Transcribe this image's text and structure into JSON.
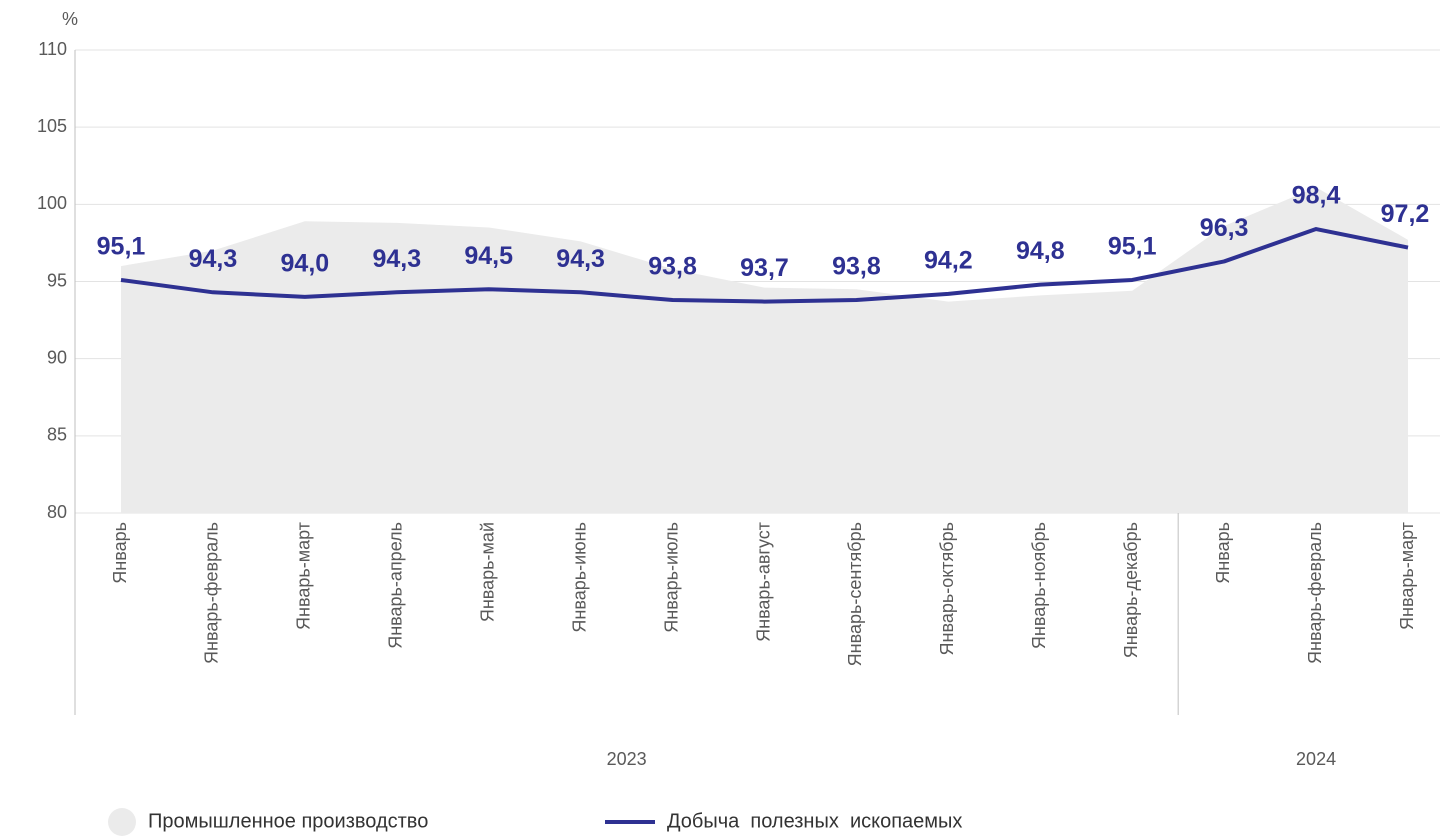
{
  "chart_data": {
    "type": "line",
    "y_unit": "%",
    "groups": [
      {
        "label": "2023",
        "categories": [
          "Январь",
          "Январь-февраль",
          "Январь-март",
          "Январь-апрель",
          "Январь-май",
          "Январь-июнь",
          "Январь-июль",
          "Январь-август",
          "Январь-сентябрь",
          "Январь-октябрь",
          "Январь-ноябрь",
          "Январь-декабрь"
        ]
      },
      {
        "label": "2024",
        "categories": [
          "Январь",
          "Январь-февраль",
          "Январь-март"
        ]
      }
    ],
    "series": [
      {
        "name": "Промышленное производство",
        "kind": "area",
        "color": "#ebebeb",
        "values": [
          96.0,
          97.0,
          98.9,
          98.8,
          98.5,
          97.6,
          95.8,
          94.6,
          94.5,
          93.7,
          94.1,
          94.4,
          98.6,
          101.1,
          97.7
        ]
      },
      {
        "name": "Добыча  полезных  ископаемых",
        "kind": "line",
        "color": "#2e3192",
        "values": [
          95.1,
          94.3,
          94.0,
          94.3,
          94.5,
          94.3,
          93.8,
          93.7,
          93.8,
          94.2,
          94.8,
          95.1,
          96.3,
          98.4,
          97.2
        ],
        "value_labels": [
          "95,1",
          "94,3",
          "94,0",
          "94,3",
          "94,5",
          "94,3",
          "93,8",
          "93,7",
          "93,8",
          "94,2",
          "94,8",
          "95,1",
          "96,3",
          "98,4",
          "97,2"
        ]
      }
    ],
    "ylim": [
      80,
      110
    ],
    "yticks": [
      80,
      85,
      90,
      95,
      100,
      105,
      110
    ],
    "grid": true
  }
}
